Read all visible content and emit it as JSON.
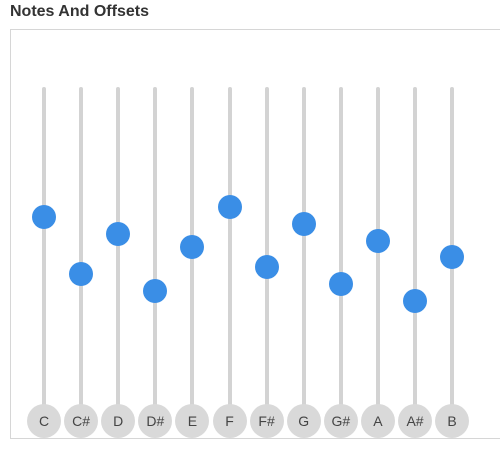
{
  "header": {
    "title": "Notes And Offsets"
  },
  "colors": {
    "thumb": "#3a8ee6",
    "track": "#d3d3d3",
    "note_button": "#d9d9d9"
  },
  "sliders": [
    {
      "note": "C",
      "value": 0.61
    },
    {
      "note": "C#",
      "value": 0.44
    },
    {
      "note": "D",
      "value": 0.56
    },
    {
      "note": "D#",
      "value": 0.39
    },
    {
      "note": "E",
      "value": 0.52
    },
    {
      "note": "F",
      "value": 0.64
    },
    {
      "note": "F#",
      "value": 0.46
    },
    {
      "note": "G",
      "value": 0.59
    },
    {
      "note": "G#",
      "value": 0.41
    },
    {
      "note": "A",
      "value": 0.54
    },
    {
      "note": "A#",
      "value": 0.36
    },
    {
      "note": "B",
      "value": 0.49
    }
  ]
}
